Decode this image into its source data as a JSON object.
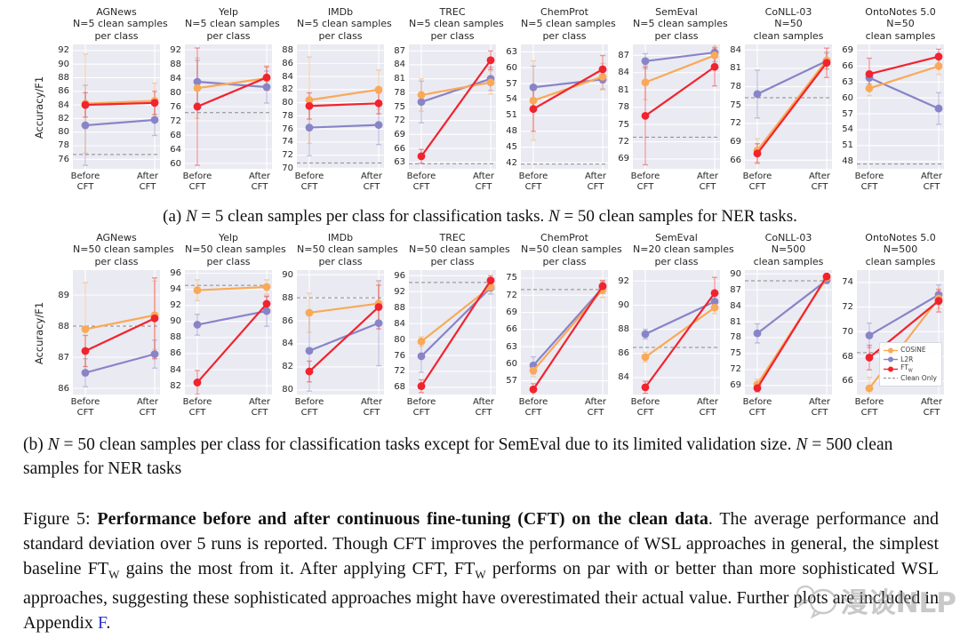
{
  "panel_a": {
    "ylabel": "Accuracy/F1"
  },
  "panel_b": {
    "ylabel": "Accuracy/F1"
  },
  "xticks": [
    [
      "Before",
      "CFT"
    ],
    [
      "After",
      "CFT"
    ]
  ],
  "colors": {
    "COSINE": "#F9A957",
    "L2R": "#8884C8",
    "FTw": "#F1232E",
    "clean": "#8a8a8a",
    "plot_bg": "#EAEAF2",
    "grid": "#FFFFFF",
    "link": "#2a35c8"
  },
  "legend": {
    "entries": [
      {
        "key": "COSINE",
        "label": "COSINE",
        "type": "marker"
      },
      {
        "key": "L2R",
        "label": "L2R",
        "type": "marker"
      },
      {
        "key": "FTw",
        "label": "FT",
        "sub": "W",
        "type": "marker"
      },
      {
        "key": "clean",
        "label": "Clean Only",
        "type": "dash"
      }
    ]
  },
  "chart_data": [
    {
      "panel": "a",
      "type": "line",
      "title": [
        "AGNews",
        "N=5 clean samples",
        "per class"
      ],
      "x": [
        "Before CFT",
        "After CFT"
      ],
      "yticks": [
        76,
        78,
        80,
        82,
        84,
        86,
        88,
        90,
        92
      ],
      "ylim": [
        74.6,
        92.9
      ],
      "clean_only": 76.7,
      "series": [
        {
          "name": "COSINE",
          "values": [
            84.2,
            84.6
          ],
          "err": [
            7.3,
            2.6
          ]
        },
        {
          "name": "L2R",
          "values": [
            81.0,
            81.8
          ],
          "err": [
            5.9,
            2.3
          ]
        },
        {
          "name": "FTw",
          "values": [
            84.0,
            84.3
          ],
          "err": [
            1.8,
            1.7
          ]
        }
      ]
    },
    {
      "panel": "a",
      "type": "line",
      "title": [
        "Yelp",
        "N=5 clean samples",
        "per class"
      ],
      "x": [
        "Before CFT",
        "After CFT"
      ],
      "yticks": [
        60,
        64,
        68,
        72,
        76,
        80,
        84,
        88,
        92
      ],
      "ylim": [
        58.5,
        93.5
      ],
      "clean_only": 74.3,
      "series": [
        {
          "name": "COSINE",
          "values": [
            81.2,
            84.0
          ],
          "err": [
            8.5,
            3.5
          ]
        },
        {
          "name": "L2R",
          "values": [
            83.0,
            81.5
          ],
          "err": [
            6.0,
            4.5
          ]
        },
        {
          "name": "FTw",
          "values": [
            76.0,
            84.2
          ],
          "err": [
            16.5,
            3.0
          ]
        }
      ]
    },
    {
      "panel": "a",
      "type": "line",
      "title": [
        "IMDb",
        "N=5 clean samples",
        "per class"
      ],
      "x": [
        "Before CFT",
        "After CFT"
      ],
      "yticks": [
        70,
        72,
        74,
        76,
        78,
        80,
        82,
        84,
        86,
        88
      ],
      "ylim": [
        69.9,
        88.9
      ],
      "clean_only": 70.8,
      "series": [
        {
          "name": "COSINE",
          "values": [
            80.4,
            82.0
          ],
          "err": [
            6.6,
            3.0
          ]
        },
        {
          "name": "L2R",
          "values": [
            76.2,
            76.6
          ],
          "err": [
            4.3,
            3.0
          ]
        },
        {
          "name": "FTw",
          "values": [
            79.5,
            79.9
          ],
          "err": [
            2.0,
            1.6
          ]
        }
      ]
    },
    {
      "panel": "a",
      "type": "line",
      "title": [
        "TREC",
        "N=5 clean samples",
        "per class"
      ],
      "x": [
        "Before CFT",
        "After CFT"
      ],
      "yticks": [
        63,
        66,
        69,
        72,
        75,
        78,
        81,
        84,
        87
      ],
      "ylim": [
        61.6,
        88.4
      ],
      "clean_only": 62.7,
      "series": [
        {
          "name": "COSINE",
          "values": [
            77.5,
            80.2
          ],
          "err": [
            3.5,
            2.5
          ]
        },
        {
          "name": "L2R",
          "values": [
            76.0,
            81.0
          ],
          "err": [
            4.5,
            2.5
          ]
        },
        {
          "name": "FTw",
          "values": [
            64.3,
            85.0
          ],
          "err": [
            1.5,
            2.0
          ]
        }
      ]
    },
    {
      "panel": "a",
      "type": "line",
      "title": [
        "ChemProt",
        "N=5 clean samples",
        "per class"
      ],
      "x": [
        "Before CFT",
        "After CFT"
      ],
      "yticks": [
        42,
        45,
        48,
        51,
        54,
        57,
        60,
        63
      ],
      "ylim": [
        40.9,
        64.4
      ],
      "clean_only": 41.8,
      "series": [
        {
          "name": "COSINE",
          "values": [
            53.8,
            58.3
          ],
          "err": [
            7.5,
            2.5
          ]
        },
        {
          "name": "L2R",
          "values": [
            56.3,
            57.8
          ],
          "err": [
            4.0,
            1.8
          ]
        },
        {
          "name": "FTw",
          "values": [
            52.2,
            59.7
          ],
          "err": [
            4.2,
            2.6
          ]
        }
      ]
    },
    {
      "panel": "a",
      "type": "line",
      "title": [
        "SemEval",
        "N=5 clean samples",
        "per class"
      ],
      "x": [
        "Before CFT",
        "After CFT"
      ],
      "yticks": [
        69,
        72,
        75,
        78,
        81,
        84,
        87
      ],
      "ylim": [
        67.3,
        88.9
      ],
      "clean_only": 72.8,
      "series": [
        {
          "name": "COSINE",
          "values": [
            82.3,
            87.0
          ],
          "err": [
            3.0,
            1.5
          ]
        },
        {
          "name": "L2R",
          "values": [
            86.0,
            87.5
          ],
          "err": [
            1.3,
            1.6
          ]
        },
        {
          "name": "FTw",
          "values": [
            76.5,
            85.0
          ],
          "err": [
            8.5,
            3.3
          ]
        }
      ]
    },
    {
      "panel": "a",
      "type": "line",
      "title": [
        "CoNLL-03",
        "N=50",
        "clean samples"
      ],
      "x": [
        "Before CFT",
        "After CFT"
      ],
      "yticks": [
        66,
        69,
        72,
        75,
        78,
        81,
        84
      ],
      "ylim": [
        64.6,
        84.9
      ],
      "clean_only": 76.2,
      "series": [
        {
          "name": "COSINE",
          "values": [
            67.6,
            82.3
          ],
          "err": [
            1.9,
            1.4
          ]
        },
        {
          "name": "L2R",
          "values": [
            76.8,
            82.2
          ],
          "err": [
            3.9,
            1.3
          ]
        },
        {
          "name": "FTw",
          "values": [
            67.1,
            81.9
          ],
          "err": [
            1.6,
            2.4
          ]
        }
      ]
    },
    {
      "panel": "a",
      "type": "line",
      "title": [
        "OntoNotes 5.0",
        "N=50",
        "clean samples"
      ],
      "x": [
        "Before CFT",
        "After CFT"
      ],
      "yticks": [
        48,
        51,
        54,
        57,
        60,
        63,
        66,
        69
      ],
      "ylim": [
        46.6,
        70.1
      ],
      "clean_only": 47.5,
      "series": [
        {
          "name": "COSINE",
          "values": [
            61.8,
            66.0
          ],
          "err": [
            1.4,
            1.6
          ]
        },
        {
          "name": "L2R",
          "values": [
            63.8,
            58.0
          ],
          "err": [
            1.2,
            3.0
          ]
        },
        {
          "name": "FTw",
          "values": [
            64.5,
            67.8
          ],
          "err": [
            3.0,
            1.4
          ]
        }
      ]
    },
    {
      "panel": "b",
      "type": "line",
      "title": [
        "AGNews",
        "N=50 clean samples",
        "per class"
      ],
      "x": [
        "Before CFT",
        "After CFT"
      ],
      "yticks": [
        86,
        87,
        88,
        89
      ],
      "ylim": [
        85.8,
        89.8
      ],
      "clean_only": 88.0,
      "series": [
        {
          "name": "COSINE",
          "values": [
            87.9,
            88.35
          ],
          "err": [
            1.5,
            1.1
          ]
        },
        {
          "name": "L2R",
          "values": [
            86.5,
            87.1
          ],
          "err": [
            0.45,
            0.45
          ]
        },
        {
          "name": "FTw",
          "values": [
            87.2,
            88.25
          ],
          "err": [
            0.5,
            1.3
          ]
        }
      ]
    },
    {
      "panel": "b",
      "type": "line",
      "title": [
        "Yelp",
        "N=50 clean samples",
        "per class"
      ],
      "x": [
        "Before CFT",
        "After CFT"
      ],
      "yticks": [
        82,
        84,
        86,
        88,
        90,
        92,
        94,
        96
      ],
      "ylim": [
        80.9,
        96.4
      ],
      "clean_only": 94.5,
      "series": [
        {
          "name": "COSINE",
          "values": [
            93.9,
            94.3
          ],
          "err": [
            1.3,
            0.9
          ]
        },
        {
          "name": "L2R",
          "values": [
            89.6,
            91.3
          ],
          "err": [
            1.3,
            1.9
          ]
        },
        {
          "name": "FTw",
          "values": [
            82.4,
            92.2
          ],
          "err": [
            1.5,
            0.9
          ]
        }
      ]
    },
    {
      "panel": "b",
      "type": "line",
      "title": [
        "IMDb",
        "N=50 clean samples",
        "per class"
      ],
      "x": [
        "Before CFT",
        "After CFT"
      ],
      "yticks": [
        80,
        82,
        84,
        86,
        88,
        90
      ],
      "ylim": [
        79.6,
        90.4
      ],
      "clean_only": 88.0,
      "series": [
        {
          "name": "COSINE",
          "values": [
            86.7,
            87.5
          ],
          "err": [
            1.7,
            1.9
          ]
        },
        {
          "name": "L2R",
          "values": [
            83.4,
            85.8
          ],
          "err": [
            3.5,
            3.7
          ]
        },
        {
          "name": "FTw",
          "values": [
            81.6,
            87.2
          ],
          "err": [
            0.9,
            1.9
          ]
        }
      ]
    },
    {
      "panel": "b",
      "type": "line",
      "title": [
        "TREC",
        "N=50 clean samples",
        "per class"
      ],
      "x": [
        "Before CFT",
        "After CFT"
      ],
      "yticks": [
        68,
        72,
        76,
        80,
        84,
        88,
        92,
        96
      ],
      "ylim": [
        66.2,
        97.4
      ],
      "clean_only": 94.3,
      "series": [
        {
          "name": "COSINE",
          "values": [
            79.5,
            93.2
          ],
          "err": [
            1.2,
            1.1
          ]
        },
        {
          "name": "L2R",
          "values": [
            75.8,
            93.0
          ],
          "err": [
            4.0,
            1.6
          ]
        },
        {
          "name": "FTw",
          "values": [
            68.3,
            94.8
          ],
          "err": [
            1.6,
            1.2
          ]
        }
      ]
    },
    {
      "panel": "b",
      "type": "line",
      "title": [
        "ChemProt",
        "N=50 clean samples",
        "per class"
      ],
      "x": [
        "Before CFT",
        "After CFT"
      ],
      "yticks": [
        57,
        60,
        63,
        66,
        69,
        72,
        75
      ],
      "ylim": [
        54.6,
        76.4
      ],
      "clean_only": 73.0,
      "series": [
        {
          "name": "COSINE",
          "values": [
            58.8,
            73.0
          ],
          "err": [
            1.1,
            1.4
          ]
        },
        {
          "name": "L2R",
          "values": [
            59.7,
            73.3
          ],
          "err": [
            1.5,
            1.0
          ]
        },
        {
          "name": "FTw",
          "values": [
            55.5,
            73.6
          ],
          "err": [
            1.0,
            1.0
          ]
        }
      ]
    },
    {
      "panel": "b",
      "type": "line",
      "title": [
        "SemEval",
        "N=20 clean samples",
        "per class"
      ],
      "x": [
        "Before CFT",
        "After CFT"
      ],
      "yticks": [
        84,
        86,
        88,
        90,
        92
      ],
      "ylim": [
        82.6,
        92.9
      ],
      "clean_only": 86.5,
      "series": [
        {
          "name": "COSINE",
          "values": [
            85.7,
            89.8
          ],
          "err": [
            0.4,
            0.5
          ]
        },
        {
          "name": "L2R",
          "values": [
            87.6,
            90.3
          ],
          "err": [
            0.4,
            0.6
          ]
        },
        {
          "name": "FTw",
          "values": [
            83.2,
            91.0
          ],
          "err": [
            0.5,
            1.3
          ]
        }
      ]
    },
    {
      "panel": "b",
      "type": "line",
      "title": [
        "CoNLL-03",
        "N=500",
        "clean samples"
      ],
      "x": [
        "Before CFT",
        "After CFT"
      ],
      "yticks": [
        69,
        72,
        75,
        78,
        81,
        84,
        87,
        90
      ],
      "ylim": [
        67.3,
        90.7
      ],
      "clean_only": 88.7,
      "series": [
        {
          "name": "COSINE",
          "values": [
            69.2,
            89.3
          ],
          "err": [
            1.0,
            0.5
          ]
        },
        {
          "name": "L2R",
          "values": [
            78.8,
            88.8
          ],
          "err": [
            1.8,
            0.6
          ]
        },
        {
          "name": "FTw",
          "values": [
            68.5,
            89.5
          ],
          "err": [
            0.7,
            0.5
          ]
        }
      ]
    },
    {
      "panel": "b",
      "type": "line",
      "title": [
        "OntoNotes 5.0",
        "N=500",
        "clean samples"
      ],
      "x": [
        "Before CFT",
        "After CFT"
      ],
      "yticks": [
        66,
        68,
        70,
        72,
        74
      ],
      "ylim": [
        64.9,
        75.0
      ],
      "clean_only": 68.3,
      "legend": true,
      "series": [
        {
          "name": "COSINE",
          "values": [
            65.4,
            72.7
          ],
          "err": [
            0.9,
            0.8
          ]
        },
        {
          "name": "L2R",
          "values": [
            69.7,
            73.0
          ],
          "err": [
            1.0,
            0.8
          ]
        },
        {
          "name": "FTw",
          "values": [
            67.9,
            72.5
          ],
          "err": [
            1.0,
            0.9
          ]
        }
      ]
    }
  ],
  "captions": {
    "a": [
      {
        "t": "(a) "
      },
      {
        "t": "N",
        "i": 1
      },
      {
        "t": " = 5 clean samples per class for classification tasks. "
      },
      {
        "t": "N",
        "i": 1
      },
      {
        "t": " = 50 clean samples for NER tasks."
      }
    ],
    "b": [
      {
        "t": "(b) "
      },
      {
        "t": "N",
        "i": 1
      },
      {
        "t": " = 50 clean samples per class for classification tasks except for SemEval due to its limited validation size. "
      },
      {
        "t": "N",
        "i": 1
      },
      {
        "t": " = 500 clean samples for NER tasks"
      }
    ],
    "figure": [
      {
        "t": "Figure 5: "
      },
      {
        "t": "Performance before and after continuous fine-tuning (CFT) on the clean data",
        "b": 1
      },
      {
        "t": ".  The average performance and standard deviation over 5 runs is reported.  Though CFT improves the performance of WSL approaches in general, the simplest baseline FT"
      },
      {
        "t": "W",
        "sub": 1
      },
      {
        "t": " gains the most from it. After applying CFT, FT"
      },
      {
        "t": "W",
        "sub": 1
      },
      {
        "t": " performs on par with or better than more sophisticated WSL approaches, suggesting these sophisticated approaches might have overestimated their actual value. Further plots are included in Appendix "
      },
      {
        "t": "F",
        "link": 1
      },
      {
        "t": "."
      }
    ]
  },
  "watermark": {
    "text": "漫谈NLP"
  }
}
